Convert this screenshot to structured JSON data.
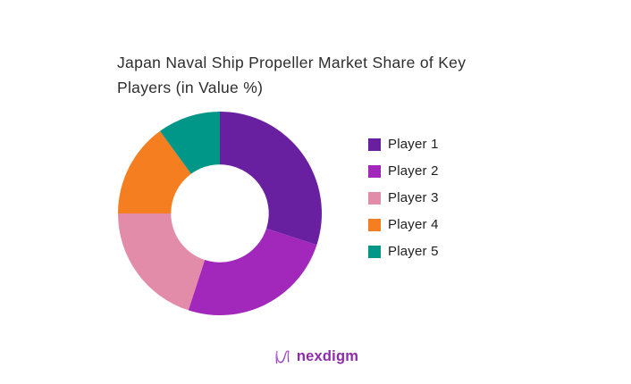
{
  "page": {
    "background": "#FFFFFF"
  },
  "header": {
    "title_lines": [
      "Japan Naval Ship Propeller Market Share of Key",
      "Players (in Value %)"
    ],
    "title_color": "#2D2D2D"
  },
  "chart_data": {
    "type": "pie",
    "subtype": "donut",
    "title": "Japan Naval Ship Propeller Market Share of Key Players (in Value %)",
    "unit": "percent",
    "categories": [
      "Player 1",
      "Player 2",
      "Player 3",
      "Player 4",
      "Player 5"
    ],
    "values": [
      30,
      25,
      20,
      15,
      10
    ],
    "colors": [
      "#681FA0",
      "#A228BC",
      "#E28CA9",
      "#F57E21",
      "#009688"
    ],
    "start_angle_deg": 0,
    "direction": "clockwise",
    "inner_radius_ratio": 0.48,
    "legend_position": "right",
    "data_labels": false,
    "legend_text_color": "#1E1E1E"
  },
  "footer": {
    "brand_text": "nexdigm",
    "brand_color": "#8E2BA9",
    "logo_icon": "nexdigm-n-wave-mark",
    "logo_gradient": [
      "#C07CE8",
      "#7B1FA2"
    ]
  }
}
